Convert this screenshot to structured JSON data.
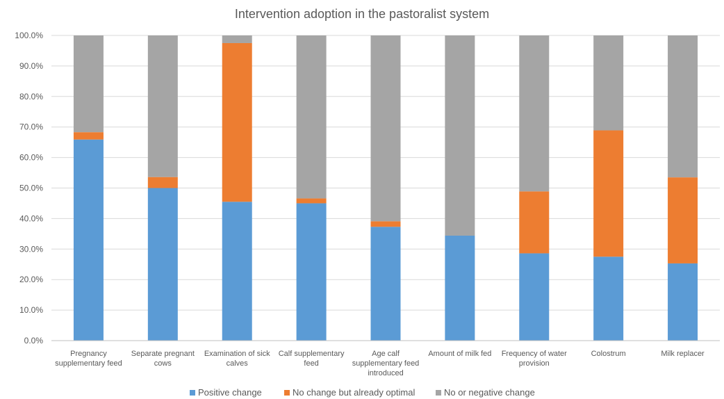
{
  "chart_data": {
    "type": "bar",
    "stacked": true,
    "title": "Intervention adoption in the pastoralist system",
    "xlabel": "",
    "ylabel": "",
    "ylim": [
      0,
      100
    ],
    "y_ticks": [
      "0.0%",
      "10.0%",
      "20.0%",
      "30.0%",
      "40.0%",
      "50.0%",
      "60.0%",
      "70.0%",
      "80.0%",
      "90.0%",
      "100.0%"
    ],
    "grid": true,
    "legend_position": "bottom",
    "categories": [
      [
        "Pregnancy",
        "supplementary feed"
      ],
      [
        "Separate pregnant",
        "cows"
      ],
      [
        "Examination of sick",
        "calves"
      ],
      [
        "Calf supplementary",
        "feed"
      ],
      [
        "Age calf",
        "supplementary feed",
        "introduced"
      ],
      [
        "Amount of milk fed"
      ],
      [
        "Frequency of water",
        "provision"
      ],
      [
        "Colostrum"
      ],
      [
        "Milk replacer"
      ]
    ],
    "series": [
      {
        "name": "Positive change",
        "color": "#5b9bd5",
        "values": [
          65.9,
          50.0,
          45.5,
          45.0,
          37.3,
          34.4,
          28.6,
          27.5,
          25.3
        ]
      },
      {
        "name": "No change but already optimal",
        "color": "#ed7d31",
        "values": [
          2.4,
          3.6,
          52.0,
          1.6,
          1.8,
          0.0,
          20.3,
          41.4,
          28.2
        ]
      },
      {
        "name": "No or negative change",
        "color": "#a5a5a5",
        "values": [
          31.7,
          46.4,
          2.5,
          53.4,
          60.9,
          65.6,
          51.1,
          31.1,
          46.5
        ]
      }
    ]
  }
}
